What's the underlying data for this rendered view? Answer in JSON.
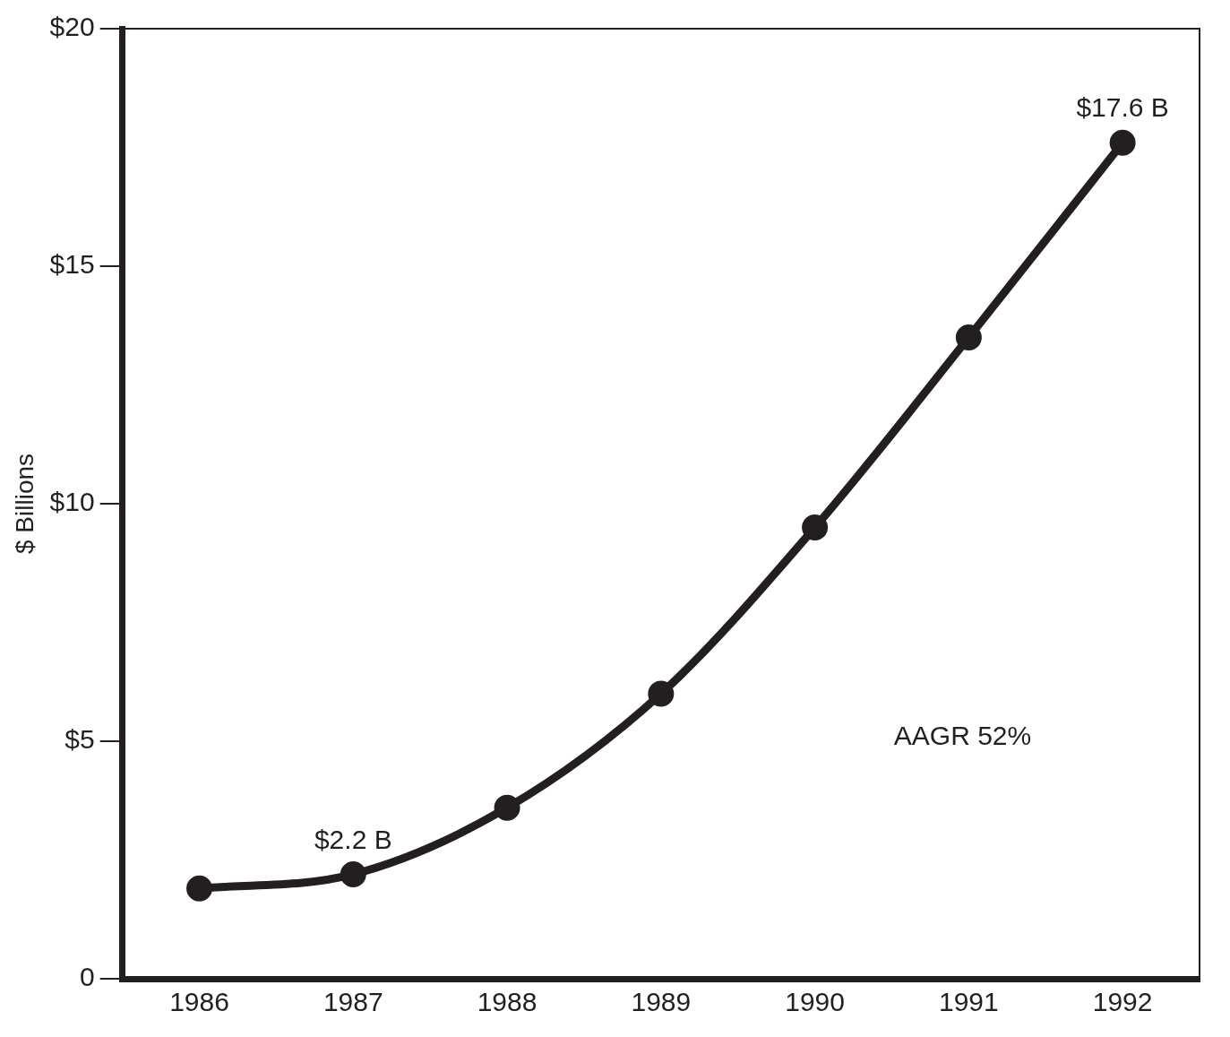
{
  "chart_data": {
    "type": "line",
    "ylabel": "$ Billions",
    "categories": [
      "1986",
      "1987",
      "1988",
      "1989",
      "1990",
      "1991",
      "1992"
    ],
    "series": [
      {
        "color": "#231f20",
        "values": [
          1.9,
          2.2,
          3.6,
          6.0,
          9.5,
          13.5,
          17.6
        ],
        "value_labels": [
          null,
          "$2.2 B",
          null,
          null,
          null,
          null,
          "$17.6 B"
        ]
      }
    ],
    "ylim": [
      0,
      20
    ],
    "yticks": [
      {
        "value": 0,
        "label": "0"
      },
      {
        "value": 5,
        "label": "$5"
      },
      {
        "value": 10,
        "label": "$10"
      },
      {
        "value": 15,
        "label": "$15"
      },
      {
        "value": 20,
        "label": "$20"
      }
    ],
    "annotations": [
      "AAGR 52%"
    ],
    "marker": "circle",
    "line_style": "solid",
    "grid": false,
    "legend": false
  }
}
